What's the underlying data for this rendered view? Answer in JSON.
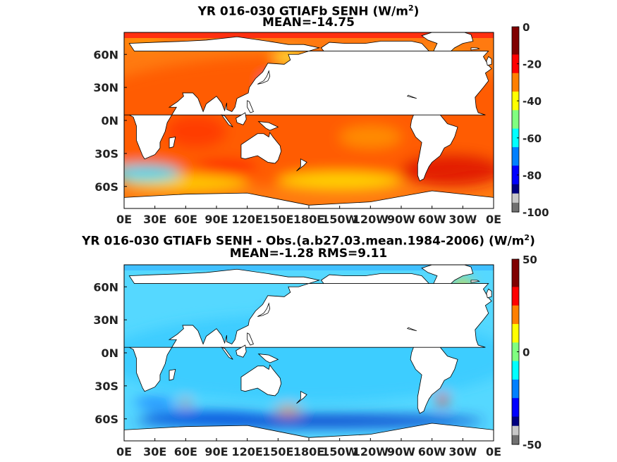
{
  "panels": [
    {
      "title_line1": "YR 016-030 GTIAFb  SENH (W/m",
      "title_sup": "2",
      "title_end": ")",
      "title_line2": "MEAN=-14.75"
    },
    {
      "title_line1": "YR 016-030 GTIAFb SENH - Obs.(a.b27.03.mean.1984-2006) (W/m",
      "title_sup": "2",
      "title_end": ")",
      "title_line2": "MEAN=-1.28 RMS=9.11"
    }
  ],
  "chart_data": [
    {
      "type": "heatmap",
      "title": "YR 016-030 GTIAFb  SENH (W/m2)",
      "subtitle": "MEAN=-14.75",
      "variable": "SENH",
      "units": "W/m2",
      "mean": -14.75,
      "x_ticks": [
        "0E",
        "30E",
        "60E",
        "90E",
        "120E",
        "150E",
        "180E",
        "150W",
        "120W",
        "90W",
        "60W",
        "30W",
        "0E"
      ],
      "y_ticks": [
        "60N",
        "30N",
        "0N",
        "30S",
        "60S"
      ],
      "colorbar": {
        "min": -100,
        "max": 0,
        "ticks": [
          "0",
          "-20",
          "-40",
          "-60",
          "-80",
          "-100"
        ]
      },
      "colormap": "jet"
    },
    {
      "type": "heatmap",
      "title": "YR 016-030 GTIAFb SENH - Obs.(a.b27.03.mean.1984-2006) (W/m2)",
      "subtitle": "MEAN=-1.28 RMS=9.11",
      "variable": "SENH difference",
      "units": "W/m2",
      "mean": -1.28,
      "rms": 9.11,
      "x_ticks": [
        "0E",
        "30E",
        "60E",
        "90E",
        "120E",
        "150E",
        "180E",
        "150W",
        "120W",
        "90W",
        "60W",
        "30W",
        "0E"
      ],
      "y_ticks": [
        "60N",
        "30N",
        "0N",
        "30S",
        "60S"
      ],
      "colorbar": {
        "min": -50,
        "max": 50,
        "ticks": [
          "50",
          "0",
          "-50"
        ]
      },
      "colormap": "jet"
    }
  ]
}
